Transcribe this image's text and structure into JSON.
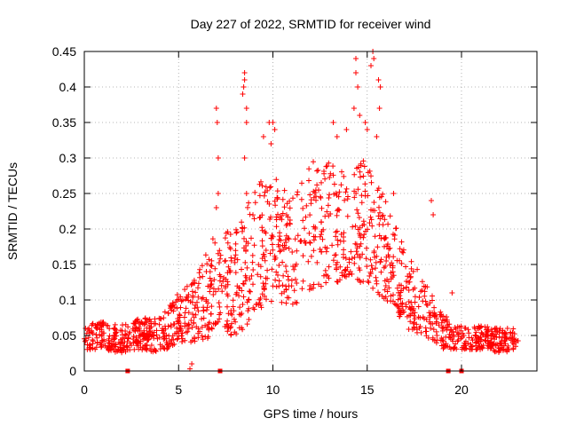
{
  "chart_data": {
    "type": "scatter",
    "title": "Day 227 of 2022, SRMTID for receiver wind",
    "xlabel": "GPS time / hours",
    "ylabel": "SRMTID / TECUs",
    "xlim": [
      0,
      24
    ],
    "ylim": [
      0,
      0.45
    ],
    "xticks": [
      "0",
      "5",
      "10",
      "15",
      "20"
    ],
    "yticks": [
      "0",
      "0.05",
      "0.1",
      "0.15",
      "0.2",
      "0.25",
      "0.3",
      "0.35",
      "0.4",
      "0.45"
    ],
    "grid": true,
    "marker": "plus",
    "series_color": "#ff0000",
    "envelope": [
      {
        "t": 0.0,
        "lo": 0.03,
        "hi": 0.065
      },
      {
        "t": 1.0,
        "lo": 0.03,
        "hi": 0.07
      },
      {
        "t": 2.0,
        "lo": 0.025,
        "hi": 0.065
      },
      {
        "t": 3.0,
        "lo": 0.03,
        "hi": 0.075
      },
      {
        "t": 4.0,
        "lo": 0.025,
        "hi": 0.075
      },
      {
        "t": 5.0,
        "lo": 0.04,
        "hi": 0.11
      },
      {
        "t": 6.0,
        "lo": 0.04,
        "hi": 0.14
      },
      {
        "t": 7.0,
        "lo": 0.05,
        "hi": 0.2
      },
      {
        "t": 8.0,
        "lo": 0.05,
        "hi": 0.2
      },
      {
        "t": 9.0,
        "lo": 0.07,
        "hi": 0.26
      },
      {
        "t": 10.0,
        "lo": 0.1,
        "hi": 0.28
      },
      {
        "t": 11.0,
        "lo": 0.09,
        "hi": 0.24
      },
      {
        "t": 12.0,
        "lo": 0.11,
        "hi": 0.3
      },
      {
        "t": 13.0,
        "lo": 0.12,
        "hi": 0.3
      },
      {
        "t": 14.0,
        "lo": 0.13,
        "hi": 0.28
      },
      {
        "t": 15.0,
        "lo": 0.12,
        "hi": 0.3
      },
      {
        "t": 16.0,
        "lo": 0.1,
        "hi": 0.24
      },
      {
        "t": 17.0,
        "lo": 0.06,
        "hi": 0.17
      },
      {
        "t": 18.0,
        "lo": 0.05,
        "hi": 0.13
      },
      {
        "t": 19.0,
        "lo": 0.03,
        "hi": 0.08
      },
      {
        "t": 20.0,
        "lo": 0.03,
        "hi": 0.065
      },
      {
        "t": 21.0,
        "lo": 0.03,
        "hi": 0.065
      },
      {
        "t": 22.0,
        "lo": 0.025,
        "hi": 0.06
      },
      {
        "t": 23.0,
        "lo": 0.03,
        "hi": 0.06
      }
    ],
    "outliers": [
      {
        "x": 7.0,
        "y": 0.37
      },
      {
        "x": 7.05,
        "y": 0.35
      },
      {
        "x": 7.1,
        "y": 0.3
      },
      {
        "x": 7.0,
        "y": 0.23
      },
      {
        "x": 7.1,
        "y": 0.25
      },
      {
        "x": 8.5,
        "y": 0.42
      },
      {
        "x": 8.5,
        "y": 0.41
      },
      {
        "x": 8.45,
        "y": 0.4
      },
      {
        "x": 8.4,
        "y": 0.39
      },
      {
        "x": 8.6,
        "y": 0.37
      },
      {
        "x": 8.6,
        "y": 0.35
      },
      {
        "x": 8.5,
        "y": 0.3
      },
      {
        "x": 8.6,
        "y": 0.25
      },
      {
        "x": 9.8,
        "y": 0.35
      },
      {
        "x": 10.0,
        "y": 0.35
      },
      {
        "x": 10.1,
        "y": 0.34
      },
      {
        "x": 9.5,
        "y": 0.33
      },
      {
        "x": 9.9,
        "y": 0.32
      },
      {
        "x": 13.2,
        "y": 0.35
      },
      {
        "x": 13.4,
        "y": 0.33
      },
      {
        "x": 13.9,
        "y": 0.34
      },
      {
        "x": 14.4,
        "y": 0.44
      },
      {
        "x": 14.4,
        "y": 0.42
      },
      {
        "x": 14.5,
        "y": 0.4
      },
      {
        "x": 14.3,
        "y": 0.37
      },
      {
        "x": 14.6,
        "y": 0.36
      },
      {
        "x": 14.9,
        "y": 0.35
      },
      {
        "x": 15.0,
        "y": 0.34
      },
      {
        "x": 15.3,
        "y": 0.45
      },
      {
        "x": 15.35,
        "y": 0.44
      },
      {
        "x": 15.2,
        "y": 0.43
      },
      {
        "x": 15.6,
        "y": 0.41
      },
      {
        "x": 15.7,
        "y": 0.4
      },
      {
        "x": 15.65,
        "y": 0.37
      },
      {
        "x": 15.5,
        "y": 0.33
      },
      {
        "x": 16.4,
        "y": 0.25
      },
      {
        "x": 18.4,
        "y": 0.24
      },
      {
        "x": 18.5,
        "y": 0.22
      },
      {
        "x": 19.5,
        "y": 0.11
      },
      {
        "x": 5.6,
        "y": 0.003
      },
      {
        "x": 5.7,
        "y": 0.01
      }
    ],
    "zero_markers": [
      2.3,
      7.2,
      19.3,
      20.0
    ]
  }
}
